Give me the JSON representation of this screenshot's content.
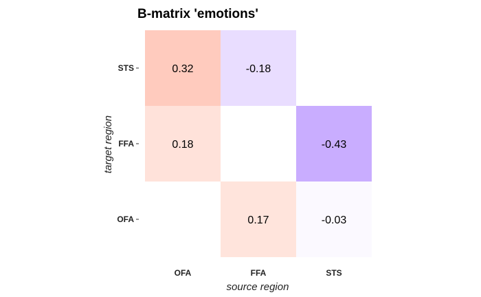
{
  "chart_data": {
    "type": "heatmap",
    "title": "B-matrix 'emotions'",
    "xlabel": "source region",
    "ylabel": "target region",
    "x_categories": [
      "OFA",
      "FFA",
      "STS"
    ],
    "y_categories": [
      "STS",
      "FFA",
      "OFA"
    ],
    "colors": {
      "positive": "#ff9e85",
      "negative": "#b48cff",
      "neutral": "#ffffff"
    },
    "scale_max_abs": 0.6,
    "cells": [
      {
        "source": "OFA",
        "target": "STS",
        "value": 0.32,
        "label": "0.32"
      },
      {
        "source": "FFA",
        "target": "STS",
        "value": -0.18,
        "label": "-0.18"
      },
      {
        "source": "STS",
        "target": "STS",
        "value": null,
        "label": ""
      },
      {
        "source": "OFA",
        "target": "FFA",
        "value": 0.18,
        "label": "0.18"
      },
      {
        "source": "FFA",
        "target": "FFA",
        "value": null,
        "label": ""
      },
      {
        "source": "STS",
        "target": "FFA",
        "value": -0.43,
        "label": "-0.43"
      },
      {
        "source": "OFA",
        "target": "OFA",
        "value": null,
        "label": ""
      },
      {
        "source": "FFA",
        "target": "OFA",
        "value": 0.17,
        "label": "0.17"
      },
      {
        "source": "STS",
        "target": "OFA",
        "value": -0.03,
        "label": "-0.03"
      }
    ]
  }
}
